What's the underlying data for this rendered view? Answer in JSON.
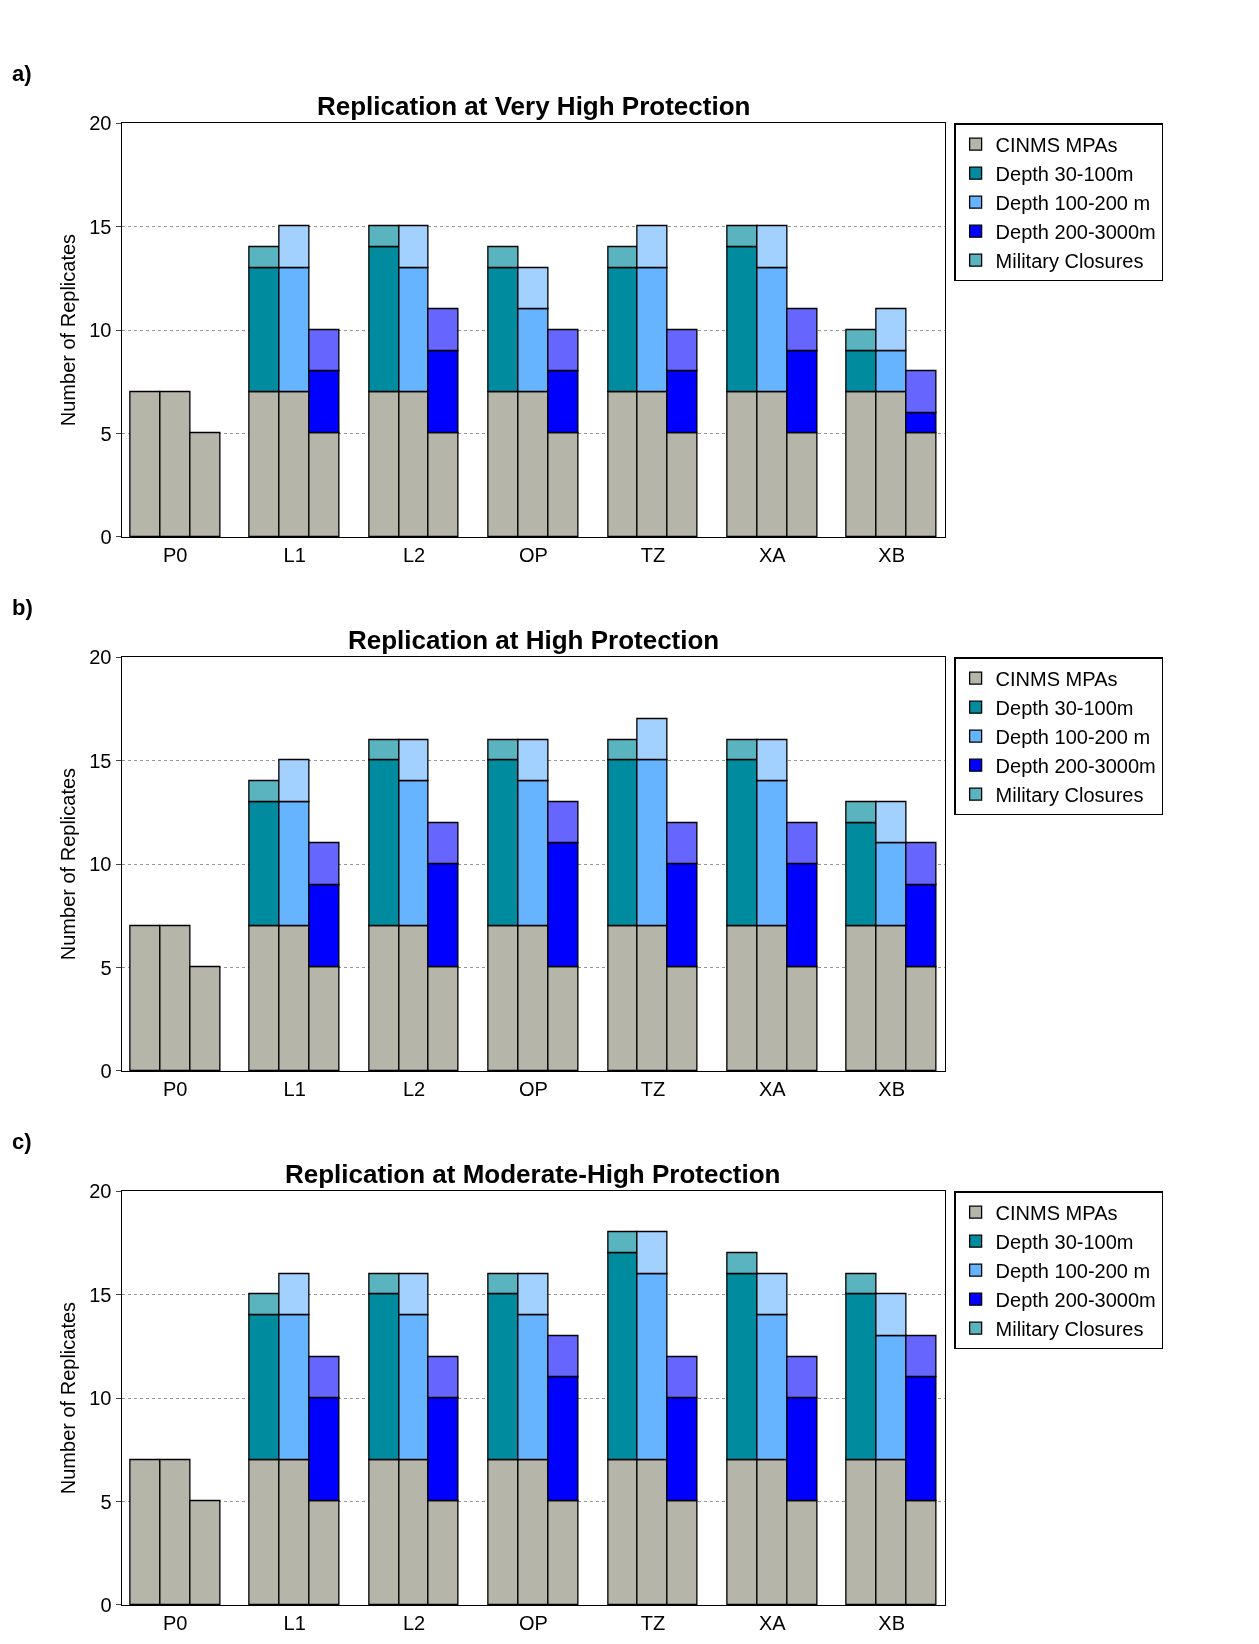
{
  "chart_data": [
    {
      "type": "bar",
      "stacked": true,
      "title": "Replication at Very High Protection",
      "ylabel": "Number of Replicates",
      "annotations": [
        "a)"
      ],
      "ylim": [
        0,
        20
      ],
      "yticks": [
        0,
        5,
        10,
        15,
        20
      ],
      "grid": "y",
      "legend": "top right",
      "categories": [
        null,
        "P0",
        null,
        null,
        null,
        "L1",
        null,
        null,
        null,
        "L2",
        null,
        null,
        null,
        "OP",
        null,
        null,
        null,
        "TZ",
        null,
        null,
        null,
        "XA",
        null,
        null,
        null,
        "XB",
        null
      ],
      "series": [
        {
          "name": "CINMS MPAs",
          "color": "#b5b5aa",
          "values": [
            7,
            7,
            5,
            null,
            7,
            7,
            5,
            null,
            7,
            7,
            5,
            null,
            7,
            7,
            5,
            null,
            7,
            7,
            5,
            null,
            7,
            7,
            5,
            null,
            7,
            7,
            5
          ]
        },
        {
          "name": "Depth 30-100m",
          "color": "#008b9e",
          "values": [
            null,
            null,
            null,
            null,
            6,
            null,
            null,
            null,
            7,
            null,
            null,
            null,
            6,
            null,
            null,
            null,
            6,
            null,
            null,
            null,
            7,
            null,
            null,
            null,
            2,
            null,
            null
          ]
        },
        {
          "name": "Depth 100-200 m",
          "color": "#66b3ff",
          "values": [
            null,
            null,
            null,
            null,
            null,
            6,
            null,
            null,
            null,
            6,
            null,
            null,
            null,
            4,
            null,
            null,
            null,
            6,
            null,
            null,
            null,
            6,
            null,
            null,
            null,
            2,
            null
          ]
        },
        {
          "name": "Depth 200-3000m",
          "color": "#0000ff",
          "values": [
            null,
            null,
            null,
            null,
            null,
            null,
            3,
            null,
            null,
            null,
            4,
            null,
            null,
            null,
            3,
            null,
            null,
            null,
            3,
            null,
            null,
            null,
            4,
            null,
            null,
            null,
            1
          ]
        },
        {
          "name": "Military Closures",
          "colors": [
            null,
            null,
            null,
            null,
            "#5ab4c0",
            "#a3d1ff",
            "#6666ff",
            null,
            "#5ab4c0",
            "#a3d1ff",
            "#6666ff",
            null,
            "#5ab4c0",
            "#a3d1ff",
            "#6666ff",
            null,
            "#5ab4c0",
            "#a3d1ff",
            "#6666ff",
            null,
            "#5ab4c0",
            "#a3d1ff",
            "#6666ff",
            null,
            "#5ab4c0",
            "#a3d1ff",
            "#6666ff"
          ],
          "values": [
            null,
            null,
            null,
            null,
            1,
            2,
            2,
            null,
            1,
            2,
            2,
            null,
            1,
            2,
            2,
            null,
            1,
            2,
            2,
            null,
            1,
            2,
            2,
            null,
            1,
            2,
            2
          ]
        }
      ]
    },
    {
      "type": "bar",
      "stacked": true,
      "title": "Replication at High Protection",
      "ylabel": "Number of Replicates",
      "annotations": [
        "b)"
      ],
      "ylim": [
        0,
        20
      ],
      "yticks": [
        0,
        5,
        10,
        15,
        20
      ],
      "grid": "y",
      "legend": "top right",
      "categories": [
        null,
        "P0",
        null,
        null,
        null,
        "L1",
        null,
        null,
        null,
        "L2",
        null,
        null,
        null,
        "OP",
        null,
        null,
        null,
        "TZ",
        null,
        null,
        null,
        "XA",
        null,
        null,
        null,
        "XB",
        null
      ],
      "series": [
        {
          "name": "CINMS MPAs",
          "color": "#b5b5aa",
          "values": [
            7,
            7,
            5,
            null,
            7,
            7,
            5,
            null,
            7,
            7,
            5,
            null,
            7,
            7,
            5,
            null,
            7,
            7,
            5,
            null,
            7,
            7,
            5,
            null,
            7,
            7,
            5
          ]
        },
        {
          "name": "Depth 30-100m",
          "color": "#008b9e",
          "values": [
            null,
            null,
            null,
            null,
            6,
            null,
            null,
            null,
            8,
            null,
            null,
            null,
            8,
            null,
            null,
            null,
            8,
            null,
            null,
            null,
            8,
            null,
            null,
            null,
            5,
            null,
            null
          ]
        },
        {
          "name": "Depth 100-200 m",
          "color": "#66b3ff",
          "values": [
            null,
            null,
            null,
            null,
            null,
            6,
            null,
            null,
            null,
            7,
            null,
            null,
            null,
            7,
            null,
            null,
            null,
            8,
            null,
            null,
            null,
            7,
            null,
            null,
            null,
            4,
            null
          ]
        },
        {
          "name": "Depth 200-3000m",
          "color": "#0000ff",
          "values": [
            null,
            null,
            null,
            null,
            null,
            null,
            4,
            null,
            null,
            null,
            5,
            null,
            null,
            null,
            6,
            null,
            null,
            null,
            5,
            null,
            null,
            null,
            5,
            null,
            null,
            null,
            4
          ]
        },
        {
          "name": "Military Closures",
          "colors": [
            null,
            null,
            null,
            null,
            "#5ab4c0",
            "#a3d1ff",
            "#6666ff",
            null,
            "#5ab4c0",
            "#a3d1ff",
            "#6666ff",
            null,
            "#5ab4c0",
            "#a3d1ff",
            "#6666ff",
            null,
            "#5ab4c0",
            "#a3d1ff",
            "#6666ff",
            null,
            "#5ab4c0",
            "#a3d1ff",
            "#6666ff",
            null,
            "#5ab4c0",
            "#a3d1ff",
            "#6666ff"
          ],
          "values": [
            null,
            null,
            null,
            null,
            1,
            2,
            2,
            null,
            1,
            2,
            2,
            null,
            1,
            2,
            2,
            null,
            1,
            2,
            2,
            null,
            1,
            2,
            2,
            null,
            1,
            2,
            2
          ]
        }
      ]
    },
    {
      "type": "bar",
      "stacked": true,
      "title": "Replication at Moderate-High Protection",
      "ylabel": "Number of Replicates",
      "annotations": [
        "c)"
      ],
      "ylim": [
        0,
        20
      ],
      "yticks": [
        0,
        5,
        10,
        15,
        20
      ],
      "grid": "y",
      "legend": "top right",
      "categories": [
        null,
        "P0",
        null,
        null,
        null,
        "L1",
        null,
        null,
        null,
        "L2",
        null,
        null,
        null,
        "OP",
        null,
        null,
        null,
        "TZ",
        null,
        null,
        null,
        "XA",
        null,
        null,
        null,
        "XB",
        null
      ],
      "series": [
        {
          "name": "CINMS MPAs",
          "color": "#b5b5aa",
          "values": [
            7,
            7,
            5,
            null,
            7,
            7,
            5,
            null,
            7,
            7,
            5,
            null,
            7,
            7,
            5,
            null,
            7,
            7,
            5,
            null,
            7,
            7,
            5,
            null,
            7,
            7,
            5
          ]
        },
        {
          "name": "Depth 30-100m",
          "color": "#008b9e",
          "values": [
            null,
            null,
            null,
            null,
            7,
            null,
            null,
            null,
            8,
            null,
            null,
            null,
            8,
            null,
            null,
            null,
            10,
            null,
            null,
            null,
            9,
            null,
            null,
            null,
            8,
            null,
            null
          ]
        },
        {
          "name": "Depth 100-200 m",
          "color": "#66b3ff",
          "values": [
            null,
            null,
            null,
            null,
            null,
            7,
            null,
            null,
            null,
            7,
            null,
            null,
            null,
            7,
            null,
            null,
            null,
            9,
            null,
            null,
            null,
            7,
            null,
            null,
            null,
            6,
            null
          ]
        },
        {
          "name": "Depth 200-3000m",
          "color": "#0000ff",
          "values": [
            null,
            null,
            null,
            null,
            null,
            null,
            5,
            null,
            null,
            null,
            5,
            null,
            null,
            null,
            6,
            null,
            null,
            null,
            5,
            null,
            null,
            null,
            5,
            null,
            null,
            null,
            6
          ]
        },
        {
          "name": "Military Closures",
          "colors": [
            null,
            null,
            null,
            null,
            "#5ab4c0",
            "#a3d1ff",
            "#6666ff",
            null,
            "#5ab4c0",
            "#a3d1ff",
            "#6666ff",
            null,
            "#5ab4c0",
            "#a3d1ff",
            "#6666ff",
            null,
            "#5ab4c0",
            "#a3d1ff",
            "#6666ff",
            null,
            "#5ab4c0",
            "#a3d1ff",
            "#6666ff",
            null,
            "#5ab4c0",
            "#a3d1ff",
            "#6666ff"
          ],
          "values": [
            null,
            null,
            null,
            null,
            1,
            2,
            2,
            null,
            1,
            2,
            2,
            null,
            1,
            2,
            2,
            null,
            1,
            2,
            2,
            null,
            1,
            2,
            2,
            null,
            1,
            2,
            2
          ]
        }
      ]
    }
  ]
}
